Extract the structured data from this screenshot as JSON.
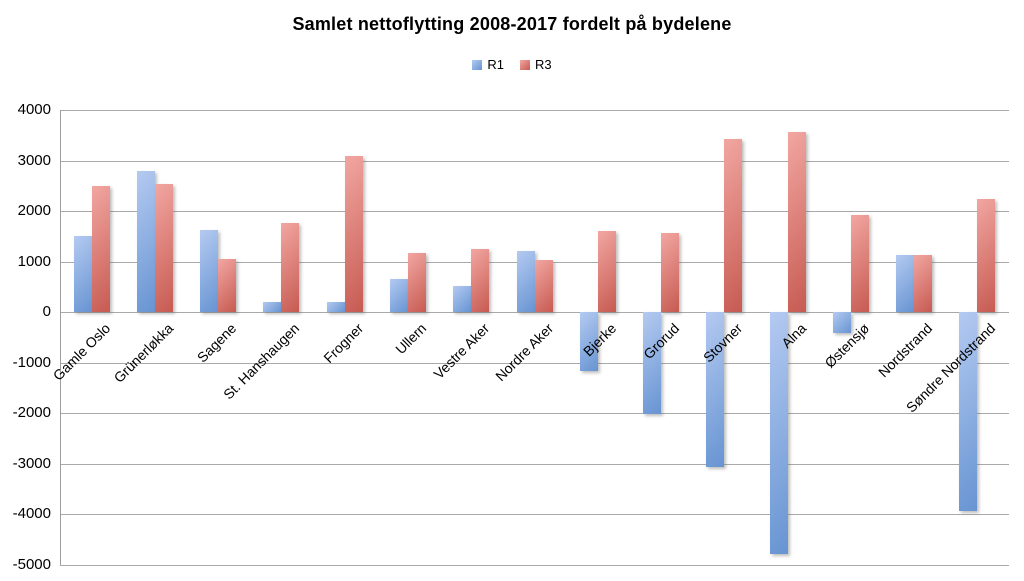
{
  "chart_data": {
    "type": "bar",
    "title": "Samlet nettoflytting 2008-2017 fordelt på bydelene",
    "xlabel": "",
    "ylabel": "",
    "categories": [
      "Gamle Oslo",
      "Grünerløkka",
      "Sagene",
      "St. Hanshaugen",
      "Frogner",
      "Ullern",
      "Vestre Aker",
      "Nordre Aker",
      "Bjerke",
      "Grorud",
      "Stovner",
      "Alna",
      "Østensjø",
      "Nordstrand",
      "Søndre Nordstrand"
    ],
    "series": [
      {
        "name": "R1",
        "color_light": "#b4caf1",
        "color_dark": "#6794d2",
        "values": [
          1510,
          2800,
          1630,
          210,
          200,
          650,
          520,
          1220,
          -1160,
          -2010,
          -3060,
          -4780,
          -420,
          1130,
          -3930
        ]
      },
      {
        "name": "R3",
        "color_light": "#f2a6a1",
        "color_dark": "#c65b52",
        "values": [
          2500,
          2530,
          1060,
          1760,
          3100,
          1170,
          1250,
          1040,
          1610,
          1570,
          3430,
          3570,
          1930,
          1140,
          2250
        ]
      }
    ],
    "ylim": [
      -5000,
      4000
    ],
    "ytick_step": 1000,
    "ytick_labels": [
      "4000",
      "3000",
      "2000",
      "1000",
      "0",
      "-1000",
      "-2000",
      "-3000",
      "-4000",
      "-5000"
    ],
    "grid": true,
    "legend_position": "top"
  },
  "colors": {
    "gridline": "#a9a9a9",
    "axis": "#9e9e9e",
    "text": "#000000",
    "background": "#ffffff"
  }
}
